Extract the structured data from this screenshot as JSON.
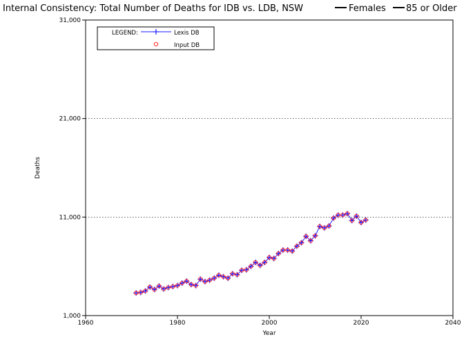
{
  "chart_data": {
    "type": "line",
    "title": "Internal Consistency: Total Number of Deaths for IDB vs. LDB, NSW — Females — 85 or Older",
    "title_parts": {
      "main": "Internal Consistency: Total Number of Deaths for IDB vs. LDB, NSW",
      "sex": "Females",
      "age": "85 or Older"
    },
    "xlabel": "Year",
    "ylabel": "Deaths",
    "xlim": [
      1960,
      2040
    ],
    "ylim": [
      1000,
      31000
    ],
    "x_ticks": [
      1960,
      1980,
      2000,
      2020,
      2040
    ],
    "x_tick_labels": [
      "1960",
      "1980",
      "2000",
      "2020",
      "2040"
    ],
    "y_ticks": [
      1000,
      11000,
      21000,
      31000
    ],
    "y_tick_labels": [
      "1,000",
      "11,000",
      "21,000",
      "31,000"
    ],
    "grid": true,
    "legend": {
      "placement": "top-left",
      "heading": "LEGEND:",
      "entries": [
        "Lexis DB",
        "Input DB"
      ]
    },
    "x": [
      1971,
      1972,
      1973,
      1974,
      1975,
      1976,
      1977,
      1978,
      1979,
      1980,
      1981,
      1982,
      1983,
      1984,
      1985,
      1986,
      1987,
      1988,
      1989,
      1990,
      1991,
      1992,
      1993,
      1994,
      1995,
      1996,
      1997,
      1998,
      1999,
      2000,
      2001,
      2002,
      2003,
      2004,
      2005,
      2006,
      2007,
      2008,
      2009,
      2010,
      2011,
      2012,
      2013,
      2014,
      2015,
      2016,
      2017,
      2018,
      2019,
      2020,
      2021
    ],
    "series": [
      {
        "name": "Lexis DB",
        "marker": "plus",
        "color": "#1a1aff",
        "values": [
          3300,
          3350,
          3500,
          3900,
          3650,
          4000,
          3700,
          3850,
          3950,
          4050,
          4300,
          4500,
          4150,
          4050,
          4700,
          4450,
          4600,
          4800,
          5100,
          4950,
          4800,
          5250,
          5150,
          5600,
          5650,
          6000,
          6400,
          6100,
          6400,
          6900,
          6800,
          7300,
          7650,
          7650,
          7550,
          8050,
          8400,
          9050,
          8600,
          9100,
          10050,
          9900,
          10100,
          10900,
          11200,
          11200,
          11350,
          10650,
          11100,
          10450,
          10700
        ]
      },
      {
        "name": "Input DB",
        "marker": "circle",
        "color": "#ff2020",
        "values": [
          3300,
          3350,
          3500,
          3900,
          3650,
          4000,
          3700,
          3850,
          3950,
          4050,
          4300,
          4500,
          4150,
          4050,
          4700,
          4450,
          4600,
          4800,
          5100,
          4950,
          4800,
          5250,
          5150,
          5600,
          5650,
          6000,
          6400,
          6100,
          6400,
          6900,
          6800,
          7300,
          7650,
          7650,
          7550,
          8050,
          8400,
          9050,
          8600,
          9100,
          10050,
          9900,
          10100,
          10900,
          11200,
          11200,
          11350,
          10650,
          11100,
          10450,
          10700
        ]
      }
    ]
  }
}
